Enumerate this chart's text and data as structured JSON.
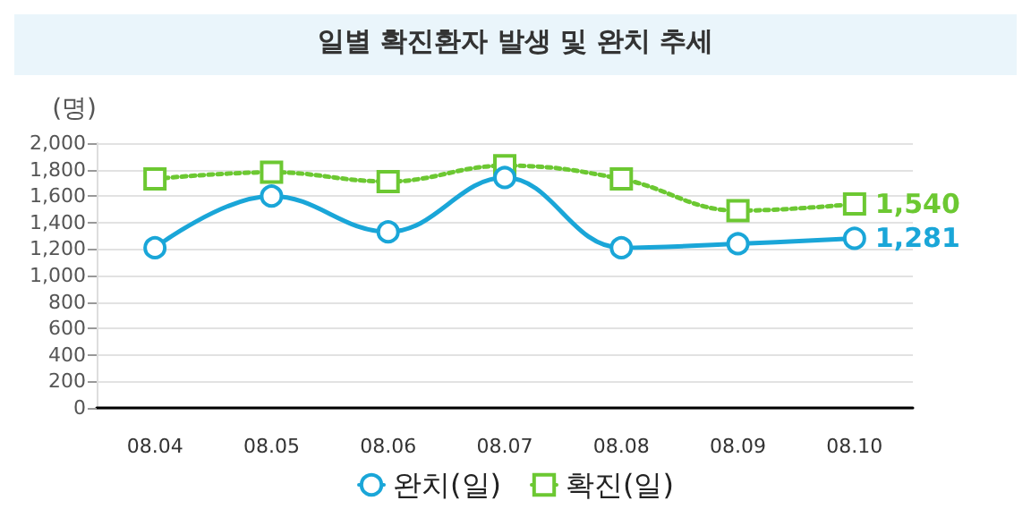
{
  "chart_data": {
    "type": "line",
    "title": "일별 확진환자 발생 및 완치 추세",
    "ylabel": "(명)",
    "categories": [
      "08.04",
      "08.05",
      "08.06",
      "08.07",
      "08.08",
      "08.09",
      "08.10"
    ],
    "series": [
      {
        "name": "완치(일)",
        "color": "#1aa6d8",
        "marker": "circle",
        "line_style": "solid",
        "values": [
          1210,
          1600,
          1330,
          1740,
          1210,
          1240,
          1281
        ],
        "value_labels": [
          null,
          null,
          null,
          null,
          null,
          null,
          "1,281"
        ]
      },
      {
        "name": "확진(일)",
        "color": "#6cc832",
        "marker": "square",
        "line_style": "dotted",
        "values": [
          1730,
          1780,
          1710,
          1830,
          1730,
          1490,
          1540
        ],
        "value_labels": [
          null,
          null,
          null,
          null,
          null,
          null,
          "1,540"
        ]
      }
    ],
    "ylim": [
      0,
      2000
    ],
    "yticks": [
      0,
      200,
      400,
      600,
      800,
      {
        "value": 1000,
        "label": "1,000"
      },
      {
        "value": 1200,
        "label": "1,200"
      },
      {
        "value": 1400,
        "label": "1,400"
      },
      {
        "value": 1600,
        "label": "1,600"
      },
      {
        "value": 1800,
        "label": "1,800"
      },
      {
        "value": 2000,
        "label": "2,000"
      }
    ],
    "grid": "y",
    "legend": "bottom"
  }
}
